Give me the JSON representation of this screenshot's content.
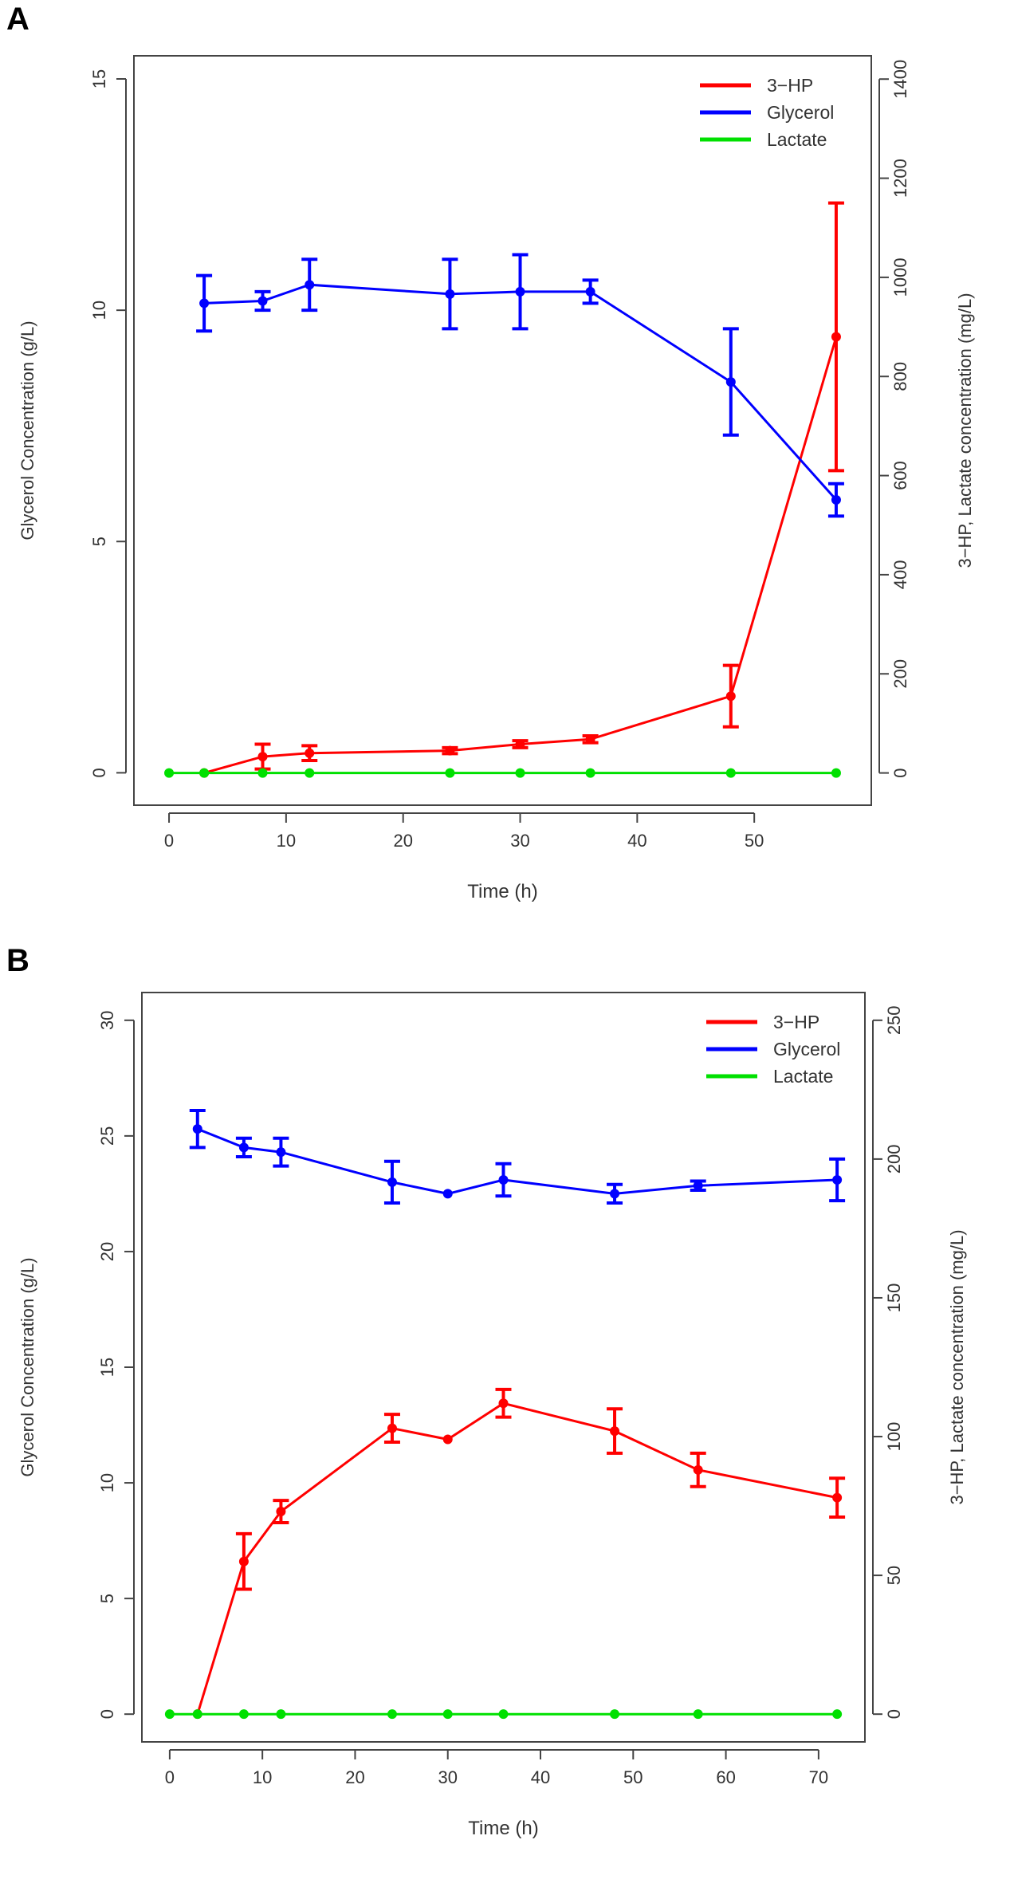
{
  "figure": {
    "panels": [
      "A",
      "B"
    ]
  },
  "chart_data": [
    {
      "panel": "A",
      "type": "line",
      "title": "",
      "xlabel": "Time (h)",
      "ylabel": "Glycerol Concentration (g/L)",
      "y2label": "3−HP, Lactate concentration (mg/L)",
      "xlim": [
        -3,
        60
      ],
      "xticks": [
        0,
        10,
        20,
        30,
        40,
        50
      ],
      "ylim": [
        -0.7,
        15.5
      ],
      "yticks": [
        0,
        5,
        10,
        15
      ],
      "y2lim": [
        -65,
        1447
      ],
      "y2ticks": [
        0,
        200,
        400,
        600,
        800,
        1000,
        1200,
        1400
      ],
      "legend_position": "top-right",
      "series": [
        {
          "name": "3−HP",
          "color": "#ff0000",
          "axis": "right",
          "x": [
            3,
            8,
            12,
            24,
            30,
            36,
            48,
            57
          ],
          "y": [
            0,
            33,
            40,
            45,
            58,
            68,
            155,
            880
          ],
          "err": [
            0,
            25,
            15,
            6,
            7,
            7,
            62,
            270
          ]
        },
        {
          "name": "Glycerol",
          "color": "#0000ff",
          "axis": "left",
          "x": [
            3,
            8,
            12,
            24,
            30,
            36,
            48,
            57
          ],
          "y": [
            10.15,
            10.2,
            10.55,
            10.35,
            10.4,
            10.4,
            8.45,
            5.9
          ],
          "err": [
            0.6,
            0.2,
            0.55,
            0.75,
            0.8,
            0.25,
            1.15,
            0.35
          ]
        },
        {
          "name": "Lactate",
          "color": "#00e000",
          "axis": "right",
          "x": [
            0,
            3,
            8,
            12,
            24,
            30,
            36,
            48,
            57
          ],
          "y": [
            0,
            0,
            0,
            0,
            0,
            0,
            0,
            0,
            0
          ],
          "err": [
            0,
            0,
            0,
            0,
            0,
            0,
            0,
            0,
            0
          ]
        }
      ]
    },
    {
      "panel": "B",
      "type": "line",
      "title": "",
      "xlabel": "Time (h)",
      "ylabel": "Glycerol Concentration (g/L)",
      "y2label": "3−HP, Lactate concentration (mg/L)",
      "xlim": [
        -3,
        75
      ],
      "xticks": [
        0,
        10,
        20,
        30,
        40,
        50,
        60,
        70
      ],
      "ylim": [
        -1.2,
        31.2
      ],
      "yticks": [
        0,
        5,
        10,
        15,
        20,
        25,
        30
      ],
      "y2lim": [
        -10,
        260
      ],
      "y2ticks": [
        0,
        50,
        100,
        150,
        200,
        250
      ],
      "legend_position": "top-right",
      "series": [
        {
          "name": "3−HP",
          "color": "#ff0000",
          "axis": "right",
          "x": [
            3,
            8,
            12,
            24,
            30,
            36,
            48,
            57,
            72
          ],
          "y": [
            0,
            55,
            73,
            103,
            99,
            112,
            102,
            88,
            78
          ],
          "err": [
            0,
            10,
            4,
            5,
            0,
            5,
            8,
            6,
            7
          ]
        },
        {
          "name": "Glycerol",
          "color": "#0000ff",
          "axis": "left",
          "x": [
            3,
            8,
            12,
            24,
            30,
            36,
            48,
            57,
            72
          ],
          "y": [
            25.3,
            24.5,
            24.3,
            23.0,
            22.5,
            23.1,
            22.5,
            22.85,
            23.1
          ],
          "err": [
            0.8,
            0.4,
            0.6,
            0.9,
            0,
            0.7,
            0.4,
            0.2,
            0.9
          ]
        },
        {
          "name": "Lactate",
          "color": "#00e000",
          "axis": "right",
          "x": [
            0,
            3,
            8,
            12,
            24,
            30,
            36,
            48,
            57,
            72
          ],
          "y": [
            0,
            0,
            0,
            0,
            0,
            0,
            0,
            0,
            0,
            0
          ],
          "err": [
            0,
            0,
            0,
            0,
            0,
            0,
            0,
            0,
            0,
            0
          ]
        }
      ]
    }
  ]
}
